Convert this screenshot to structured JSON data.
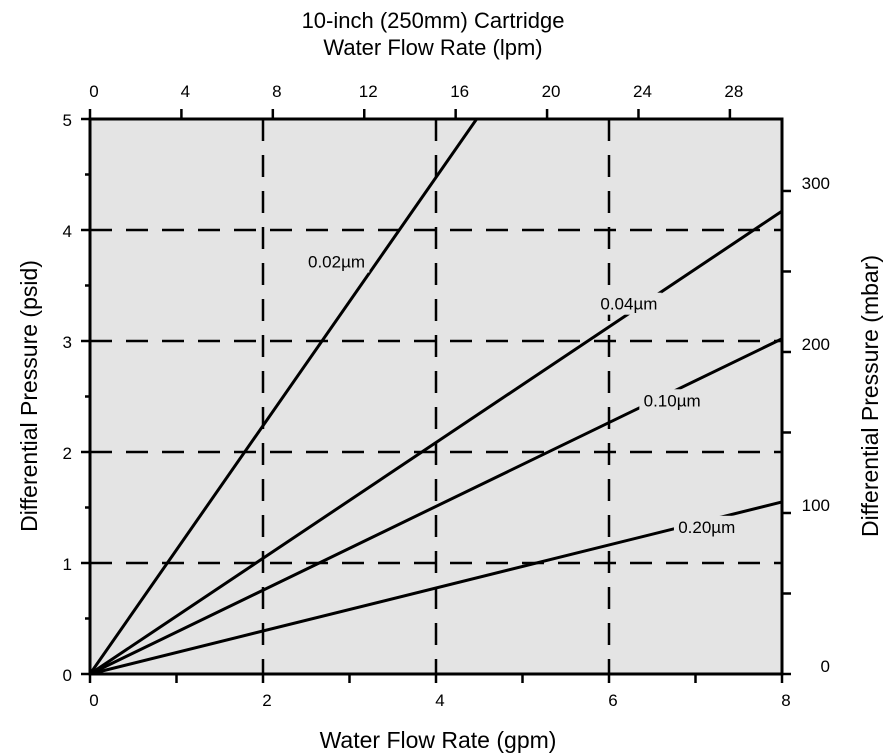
{
  "chart_data": {
    "type": "line",
    "title": "10-inch (250mm) Cartridge",
    "top_axis": {
      "label": "Water Flow Rate (lpm)",
      "ticks": [
        0,
        4,
        8,
        12,
        16,
        20,
        24,
        28
      ],
      "range": [
        0,
        30.28
      ]
    },
    "x_axis": {
      "label": "Water Flow Rate (gpm)",
      "range": [
        0,
        8
      ],
      "ticks": [
        0,
        2,
        4,
        6,
        8
      ],
      "minor_step": 1
    },
    "y_axis": {
      "label": "Differential Pressure (psid)",
      "range": [
        0,
        5
      ],
      "ticks": [
        0,
        1,
        2,
        3,
        4,
        5
      ],
      "minor_step": 0.5
    },
    "right_axis": {
      "label": "Differential Pressure (mbar)",
      "range": [
        0,
        344.7
      ],
      "ticks": [
        0,
        100,
        200,
        300
      ],
      "minor_step": 50
    },
    "grid": {
      "vertical": [
        2,
        4,
        6
      ],
      "horizontal": [
        1,
        2,
        3,
        4
      ],
      "style": "dashed"
    },
    "background": "#e4e4e4",
    "series": [
      {
        "name": "0.02µm",
        "points": [
          [
            0,
            0
          ],
          [
            4.47,
            5
          ]
        ],
        "label_at": [
          2.85,
          3.68
        ]
      },
      {
        "name": "0.04µm",
        "points": [
          [
            0,
            0
          ],
          [
            8,
            4.17
          ]
        ],
        "label_at": [
          6.23,
          3.3
        ]
      },
      {
        "name": "0.10µm",
        "points": [
          [
            0,
            0
          ],
          [
            8,
            3.02
          ]
        ],
        "label_at": [
          6.73,
          2.43
        ]
      },
      {
        "name": "0.20µm",
        "points": [
          [
            0,
            0
          ],
          [
            8,
            1.55
          ]
        ],
        "label_at": [
          7.13,
          1.29
        ]
      }
    ]
  }
}
